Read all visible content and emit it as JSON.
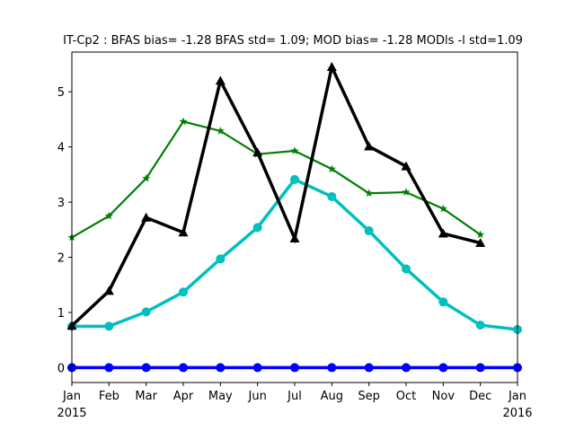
{
  "chart_data": {
    "type": "line",
    "title": "IT-Cp2   : BFAS bias= -1.28 BFAS std= 1.09; MOD bias= -1.28 MODls -l std=1.09",
    "xlabel": "",
    "ylabel": "",
    "x_ticks": [
      {
        "date": "2015-01",
        "label": "Jan",
        "sublabel": "2015"
      },
      {
        "date": "2015-02",
        "label": "Feb",
        "sublabel": ""
      },
      {
        "date": "2015-03",
        "label": "Mar",
        "sublabel": ""
      },
      {
        "date": "2015-04",
        "label": "Apr",
        "sublabel": ""
      },
      {
        "date": "2015-05",
        "label": "May",
        "sublabel": ""
      },
      {
        "date": "2015-06",
        "label": "Jun",
        "sublabel": ""
      },
      {
        "date": "2015-07",
        "label": "Jul",
        "sublabel": ""
      },
      {
        "date": "2015-08",
        "label": "Aug",
        "sublabel": ""
      },
      {
        "date": "2015-09",
        "label": "Sep",
        "sublabel": ""
      },
      {
        "date": "2015-10",
        "label": "Oct",
        "sublabel": ""
      },
      {
        "date": "2015-11",
        "label": "Nov",
        "sublabel": ""
      },
      {
        "date": "2015-12",
        "label": "Dec",
        "sublabel": ""
      },
      {
        "date": "2016-01",
        "label": "Jan",
        "sublabel": "2016"
      }
    ],
    "y_ticks": [
      0,
      1,
      2,
      3,
      4,
      5
    ],
    "xlim": [
      "2015-01",
      "2016-01"
    ],
    "ylim": [
      -0.27,
      5.72
    ],
    "grid": false,
    "series": [
      {
        "color": "#0000ff",
        "marker": "circle",
        "line_width": "thick",
        "x": [
          "2015-01",
          "2015-02",
          "2015-03",
          "2015-04",
          "2015-05",
          "2015-06",
          "2015-07",
          "2015-08",
          "2015-09",
          "2015-10",
          "2015-11",
          "2015-12",
          "2016-01"
        ],
        "values": [
          0,
          0,
          0,
          0,
          0,
          0,
          0,
          0,
          0,
          0,
          0,
          0,
          0
        ]
      },
      {
        "color": "#00bfbf",
        "marker": "circle",
        "line_width": "thick",
        "x": [
          "2015-01",
          "2015-02",
          "2015-03",
          "2015-04",
          "2015-05",
          "2015-06",
          "2015-07",
          "2015-08",
          "2015-09",
          "2015-10",
          "2015-11",
          "2015-12",
          "2016-01"
        ],
        "values": [
          0.75,
          0.75,
          1.01,
          1.37,
          1.97,
          2.54,
          3.41,
          3.1,
          2.48,
          1.79,
          1.19,
          0.77,
          0.69
        ]
      },
      {
        "color": "#008000",
        "marker": "star",
        "line_width": "medium",
        "x": [
          "2015-01",
          "2015-02",
          "2015-03",
          "2015-04",
          "2015-05",
          "2015-06",
          "2015-07",
          "2015-08",
          "2015-09",
          "2015-10",
          "2015-11",
          "2015-12"
        ],
        "values": [
          2.36,
          2.75,
          3.43,
          4.46,
          4.29,
          3.87,
          3.93,
          3.6,
          3.16,
          3.18,
          2.88,
          2.41
        ]
      },
      {
        "color": "#000000",
        "marker": "triangle",
        "line_width": "thick",
        "x": [
          "2015-01",
          "2015-02",
          "2015-03",
          "2015-04",
          "2015-05",
          "2015-06",
          "2015-07",
          "2015-08",
          "2015-09",
          "2015-10",
          "2015-11",
          "2015-12"
        ],
        "values": [
          0.76,
          1.39,
          2.72,
          2.45,
          5.2,
          3.9,
          2.34,
          5.45,
          4.01,
          3.65,
          2.43,
          2.26
        ]
      }
    ]
  }
}
